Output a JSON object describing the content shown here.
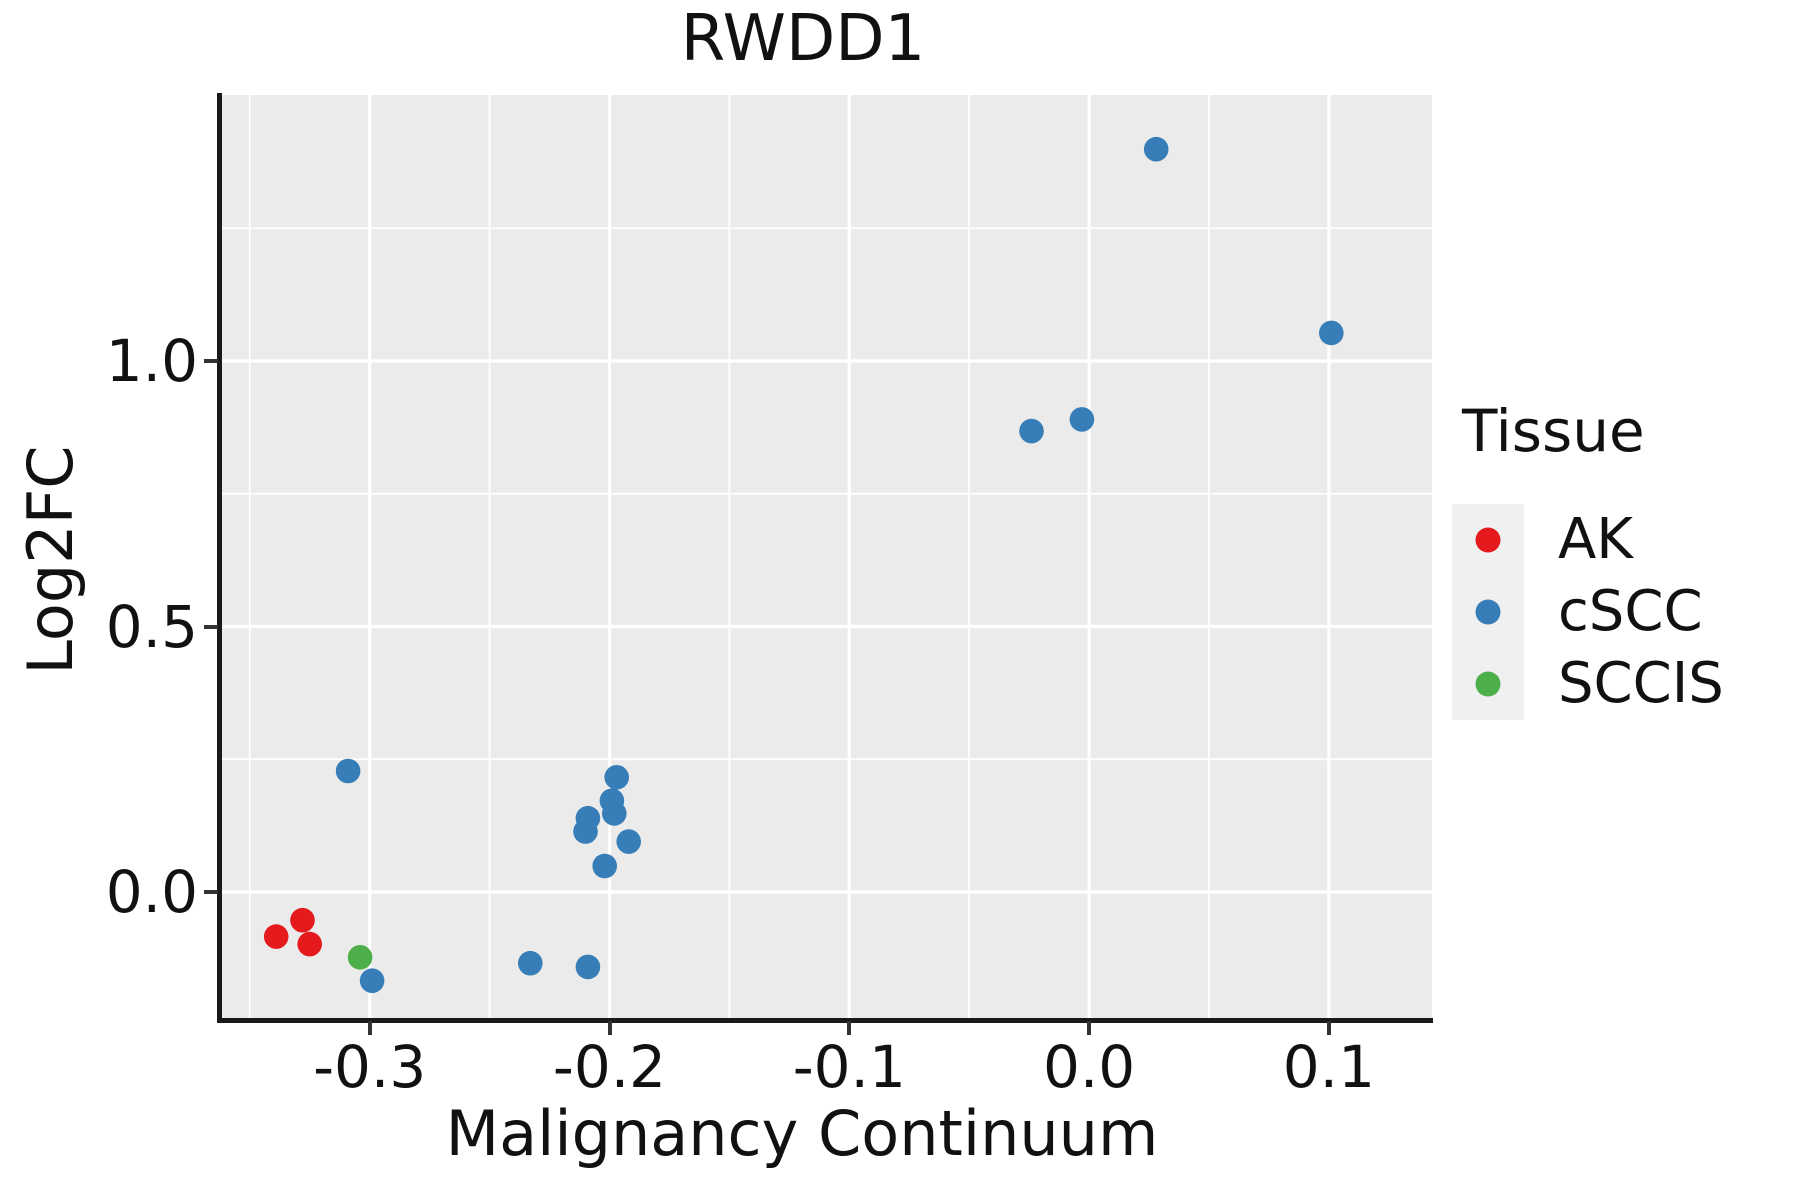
{
  "title": "RWDD1",
  "axes": {
    "x": {
      "label": "Malignancy Continuum",
      "ticks": [
        "-0.3",
        "-0.2",
        "-0.1",
        "0.0",
        "0.1"
      ],
      "tick_values": [
        -0.3,
        -0.2,
        -0.1,
        0.0,
        0.1
      ],
      "minor_tick_values": [
        -0.35,
        -0.25,
        -0.15,
        -0.05,
        0.05
      ]
    },
    "y": {
      "label": "Log2FC",
      "ticks": [
        "0.0",
        "0.5",
        "1.0"
      ],
      "tick_values": [
        0.0,
        0.5,
        1.0
      ],
      "minor_tick_values": [
        0.25,
        0.75,
        1.25
      ]
    }
  },
  "legend": {
    "title": "Tissue",
    "items": [
      {
        "label": "AK",
        "color": "#E41A1C"
      },
      {
        "label": "cSCC",
        "color": "#377EB8"
      },
      {
        "label": "SCCIS",
        "color": "#4DAF4A"
      }
    ]
  },
  "style": {
    "panel_bg": "#EBEBEB",
    "grid_color": "#FFFFFF",
    "axis_color": "#1A1A1A",
    "tick_color": "#333333",
    "legend_key_bg": "#F0F0F0",
    "point_radius": 12.3,
    "major_grid_width": 3.2,
    "minor_grid_width": 1.8
  },
  "chart_data": {
    "type": "scatter",
    "title": "RWDD1",
    "xlabel": "Malignancy Continuum",
    "ylabel": "Log2FC",
    "xlim": [
      -0.362,
      0.143
    ],
    "ylim": [
      -0.241,
      1.501
    ],
    "grid": true,
    "legend_position": "right",
    "series": [
      {
        "name": "AK",
        "color": "#E41A1C",
        "points": [
          [
            -0.339,
            -0.084
          ],
          [
            -0.328,
            -0.053
          ],
          [
            -0.325,
            -0.098
          ]
        ]
      },
      {
        "name": "cSCC",
        "color": "#377EB8",
        "points": [
          [
            -0.309,
            0.228
          ],
          [
            -0.299,
            -0.167
          ],
          [
            -0.233,
            -0.134
          ],
          [
            -0.209,
            -0.141
          ],
          [
            -0.197,
            0.216
          ],
          [
            -0.199,
            0.172
          ],
          [
            -0.198,
            0.148
          ],
          [
            -0.209,
            0.139
          ],
          [
            -0.21,
            0.114
          ],
          [
            -0.192,
            0.095
          ],
          [
            -0.202,
            0.049
          ],
          [
            -0.024,
            0.868
          ],
          [
            -0.003,
            0.89
          ],
          [
            0.028,
            1.399
          ],
          [
            0.101,
            1.053
          ]
        ]
      },
      {
        "name": "SCCIS",
        "color": "#4DAF4A",
        "points": [
          [
            -0.304,
            -0.123
          ]
        ]
      }
    ]
  }
}
